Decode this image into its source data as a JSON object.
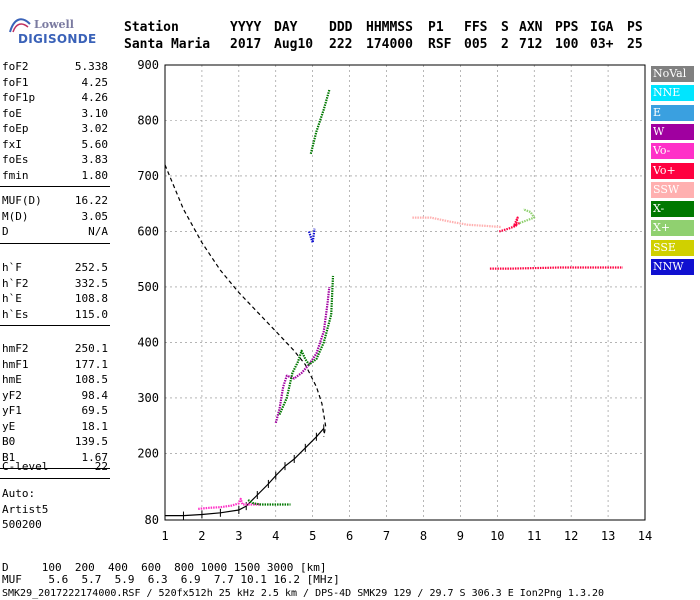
{
  "logo": {
    "line1": "Lowell",
    "line2": "DIGISONDE"
  },
  "header": {
    "labels": [
      "Station",
      "YYYY",
      "DAY",
      "DDD",
      "HHMMSS",
      "P1",
      "FFS",
      "S",
      "AXN",
      "PPS",
      "IGA",
      "PS"
    ],
    "values": [
      "Santa Maria",
      "2017",
      "Aug10",
      "222",
      "174000",
      "RSF",
      "005",
      "2",
      "712",
      "100",
      "03+",
      "25"
    ]
  },
  "params_group1": [
    {
      "name": "foF2",
      "value": "5.338"
    },
    {
      "name": "foF1",
      "value": "4.25"
    },
    {
      "name": "foF1p",
      "value": "4.26"
    },
    {
      "name": "foE",
      "value": "3.10"
    },
    {
      "name": "foEp",
      "value": "3.02"
    },
    {
      "name": "fxI",
      "value": "5.60"
    },
    {
      "name": "foEs",
      "value": "3.83"
    },
    {
      "name": "fmin",
      "value": "1.80"
    }
  ],
  "params_group2": [
    {
      "name": "MUF(D)",
      "value": "16.22"
    },
    {
      "name": "M(D)",
      "value": "3.05"
    },
    {
      "name": "D",
      "value": "N/A"
    }
  ],
  "params_group3": [
    {
      "name": "h`F",
      "value": "252.5"
    },
    {
      "name": "h`F2",
      "value": "332.5"
    },
    {
      "name": "h`E",
      "value": "108.8"
    },
    {
      "name": "h`Es",
      "value": "115.0"
    }
  ],
  "params_group4": [
    {
      "name": "hmF2",
      "value": "250.1"
    },
    {
      "name": "hmF1",
      "value": "177.1"
    },
    {
      "name": "hmE",
      "value": "108.5"
    },
    {
      "name": "yF2",
      "value": "98.4"
    },
    {
      "name": "yF1",
      "value": "69.5"
    },
    {
      "name": "yE",
      "value": "18.1"
    },
    {
      "name": "B0",
      "value": "139.5"
    },
    {
      "name": "B1",
      "value": "1.67"
    }
  ],
  "params_group5": [
    {
      "name": "C-level",
      "value": "22"
    }
  ],
  "scaler": {
    "line1": "Auto:",
    "line2": "Artist5",
    "line3": "500200"
  },
  "footer": {
    "d_row": "D     100  200  400  600  800 1000 1500 3000 [km]",
    "muf_row": "MUF    5.6  5.7  5.9  6.3  6.9  7.7 10.1 16.2 [MHz]",
    "info": "SMK29_2017222174000.RSF / 520fx512h 25 kHz 2.5 km / DPS-4D SMK29 129 / 29.7 S 306.3 E Ion2Png 1.3.20"
  },
  "legend": [
    {
      "label": "NoVal",
      "bg": "#808080",
      "fg": "#ffffff"
    },
    {
      "label": "NNE",
      "bg": "#00e5ff",
      "fg": "#ffffff"
    },
    {
      "label": "E",
      "bg": "#3aa0e0",
      "fg": "#ffffff"
    },
    {
      "label": "W",
      "bg": "#a000a0",
      "fg": "#ffffff"
    },
    {
      "label": "Vo-",
      "bg": "#ff30c8",
      "fg": "#ffffff"
    },
    {
      "label": "Vo+",
      "bg": "#ff0040",
      "fg": "#ffffff"
    },
    {
      "label": "SSW",
      "bg": "#ffb0b0",
      "fg": "#ffffff"
    },
    {
      "label": "X-",
      "bg": "#007800",
      "fg": "#ffffff"
    },
    {
      "label": "X+",
      "bg": "#90d070",
      "fg": "#ffffff"
    },
    {
      "label": "SSE",
      "bg": "#d0d000",
      "fg": "#ffffff"
    },
    {
      "label": "NNW",
      "bg": "#1010d0",
      "fg": "#ffffff"
    }
  ],
  "chart_data": {
    "type": "scatter",
    "title": "",
    "xlabel": "",
    "ylabel": "",
    "xlim": [
      1,
      14
    ],
    "ylim": [
      80,
      900
    ],
    "xticks": [
      1,
      2,
      3,
      4,
      5,
      6,
      7,
      8,
      9,
      10,
      11,
      12,
      13,
      14
    ],
    "yticks": [
      80,
      200,
      300,
      400,
      500,
      600,
      700,
      800,
      900
    ],
    "grid": "dashed",
    "series": [
      {
        "color": "#000000",
        "style": "dashed",
        "points": [
          [
            1.0,
            720
          ],
          [
            1.5,
            640
          ],
          [
            2.0,
            580
          ],
          [
            2.5,
            530
          ],
          [
            3.0,
            490
          ],
          [
            3.5,
            455
          ],
          [
            4.0,
            420
          ],
          [
            4.5,
            385
          ],
          [
            4.8,
            360
          ],
          [
            5.1,
            320
          ],
          [
            5.25,
            290
          ],
          [
            5.35,
            250
          ],
          [
            5.3,
            230
          ]
        ]
      },
      {
        "color": "#000000",
        "style": "solid-ticks",
        "points": [
          [
            1.0,
            88
          ],
          [
            1.5,
            88
          ],
          [
            2.0,
            90
          ],
          [
            2.5,
            93
          ],
          [
            3.0,
            98
          ],
          [
            3.2,
            105
          ],
          [
            3.5,
            125
          ],
          [
            3.8,
            145
          ],
          [
            4.0,
            160
          ],
          [
            4.25,
            177
          ],
          [
            4.5,
            190
          ],
          [
            4.8,
            210
          ],
          [
            5.1,
            230
          ],
          [
            5.3,
            245
          ]
        ]
      },
      {
        "color": "#ff30c8",
        "style": "trace",
        "points": [
          [
            1.9,
            100
          ],
          [
            2.2,
            102
          ],
          [
            2.5,
            103
          ],
          [
            2.8,
            106
          ],
          [
            3.0,
            110
          ],
          [
            3.05,
            118
          ],
          [
            3.1,
            108
          ],
          [
            3.3,
            108
          ],
          [
            3.6,
            108
          ]
        ]
      },
      {
        "color": "#007800",
        "style": "trace",
        "points": [
          [
            3.25,
            116
          ],
          [
            3.4,
            110
          ],
          [
            3.6,
            108
          ],
          [
            4.0,
            108
          ],
          [
            4.4,
            108
          ]
        ]
      },
      {
        "color": "#a000a0",
        "style": "trace",
        "points": [
          [
            4.0,
            255
          ],
          [
            4.1,
            280
          ],
          [
            4.2,
            320
          ],
          [
            4.3,
            340
          ],
          [
            4.5,
            335
          ],
          [
            4.7,
            345
          ],
          [
            4.9,
            360
          ],
          [
            5.1,
            380
          ],
          [
            5.3,
            420
          ],
          [
            5.4,
            470
          ],
          [
            5.45,
            500
          ]
        ]
      },
      {
        "color": "#007800",
        "style": "trace",
        "points": [
          [
            4.1,
            270
          ],
          [
            4.3,
            300
          ],
          [
            4.45,
            345
          ],
          [
            4.6,
            365
          ],
          [
            4.7,
            385
          ],
          [
            4.8,
            370
          ],
          [
            4.9,
            360
          ],
          [
            5.1,
            370
          ],
          [
            5.3,
            400
          ],
          [
            5.5,
            450
          ],
          [
            5.55,
            520
          ]
        ]
      },
      {
        "color": "#007800",
        "style": "trace",
        "points": [
          [
            4.95,
            740
          ],
          [
            5.1,
            780
          ],
          [
            5.3,
            820
          ],
          [
            5.45,
            855
          ]
        ]
      },
      {
        "color": "#ff0040",
        "style": "trace",
        "points": [
          [
            10.05,
            600
          ],
          [
            10.3,
            605
          ],
          [
            10.5,
            610
          ],
          [
            10.55,
            625
          ],
          [
            10.45,
            610
          ],
          [
            10.6,
            615
          ]
        ]
      },
      {
        "color": "#90d070",
        "style": "trace",
        "points": [
          [
            10.6,
            615
          ],
          [
            10.8,
            620
          ],
          [
            11.0,
            625
          ],
          [
            10.9,
            635
          ],
          [
            10.7,
            640
          ]
        ]
      },
      {
        "color": "#ffb0b0",
        "style": "trace",
        "points": [
          [
            7.7,
            625
          ],
          [
            8.2,
            625
          ],
          [
            8.7,
            618
          ],
          [
            9.2,
            612
          ],
          [
            9.7,
            610
          ],
          [
            10.1,
            608
          ]
        ]
      },
      {
        "color": "#ff0040",
        "style": "trace",
        "points": [
          [
            9.8,
            533
          ],
          [
            10.4,
            533
          ],
          [
            11.0,
            534
          ],
          [
            11.7,
            535
          ],
          [
            12.3,
            535
          ],
          [
            12.9,
            535
          ],
          [
            13.4,
            535
          ]
        ]
      },
      {
        "color": "#1010d0",
        "style": "trace",
        "points": [
          [
            4.9,
            600
          ],
          [
            4.95,
            590
          ],
          [
            5.0,
            580
          ],
          [
            5.05,
            605
          ]
        ]
      }
    ]
  }
}
